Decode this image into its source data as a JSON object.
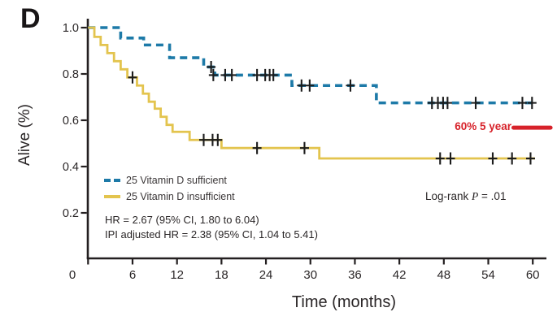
{
  "panel_label": "D",
  "stats": {
    "line1": "HR = 2.67 (95% CI, 1.80 to 6.04)",
    "line2": "IPI adjusted HR = 2.38 (95% CI, 1.04 to 5.41)"
  },
  "log_rank": {
    "prefix": "Log-rank ",
    "p_symbol": "P",
    "value": " = .01"
  },
  "annotation": {
    "label": "60% 5 year",
    "color": "#d7222a",
    "line_level": 0.568,
    "line_t_start": 57.4,
    "line_t_end": 62.4
  },
  "chart_data": {
    "type": "line",
    "subtype": "kaplan-meier-step",
    "title": "",
    "xlabel": "Time (months)",
    "ylabel": "Alive (%)",
    "xlim": [
      0,
      62
    ],
    "ylim": [
      0,
      1.0
    ],
    "xticks": [
      0,
      6,
      12,
      18,
      24,
      30,
      36,
      42,
      48,
      54,
      60
    ],
    "yticks": [
      1.0,
      0.8,
      0.6,
      0.4,
      0.2
    ],
    "ytick_labels": [
      "1.0",
      "0.8",
      "0.6",
      "0.4",
      "0.2"
    ],
    "grid": false,
    "legend_position": "inside-lower-left",
    "axis_color": "#231f20",
    "censor_color": "#1c1c1c",
    "series": [
      {
        "name": "25 Vitamin D sufficient",
        "color": "#1d7aa8",
        "line_style": "dashed",
        "steps": [
          [
            0,
            1.0
          ],
          [
            4.4,
            0.955
          ],
          [
            7.5,
            0.925
          ],
          [
            11.0,
            0.87
          ],
          [
            15.6,
            0.83
          ],
          [
            17.1,
            0.795
          ],
          [
            27.5,
            0.75
          ],
          [
            38.9,
            0.675
          ],
          [
            60.6,
            0.675
          ]
        ],
        "censor_marks": [
          [
            16.6,
            0.83
          ],
          [
            16.9,
            0.795
          ],
          [
            18.5,
            0.795
          ],
          [
            19.4,
            0.795
          ],
          [
            22.8,
            0.795
          ],
          [
            23.9,
            0.795
          ],
          [
            24.5,
            0.795
          ],
          [
            25.0,
            0.795
          ],
          [
            28.8,
            0.75
          ],
          [
            29.9,
            0.75
          ],
          [
            35.4,
            0.75
          ],
          [
            46.4,
            0.675
          ],
          [
            47.2,
            0.675
          ],
          [
            47.9,
            0.675
          ],
          [
            48.5,
            0.675
          ],
          [
            52.3,
            0.675
          ],
          [
            58.6,
            0.675
          ],
          [
            59.9,
            0.675
          ]
        ]
      },
      {
        "name": "25 Vitamin D insufficient",
        "color": "#e3c44e",
        "line_style": "solid",
        "steps": [
          [
            0,
            1.0
          ],
          [
            0.85,
            0.96
          ],
          [
            1.7,
            0.925
          ],
          [
            2.6,
            0.89
          ],
          [
            3.5,
            0.855
          ],
          [
            4.4,
            0.82
          ],
          [
            5.3,
            0.785
          ],
          [
            6.6,
            0.75
          ],
          [
            7.4,
            0.715
          ],
          [
            8.2,
            0.68
          ],
          [
            9.0,
            0.65
          ],
          [
            9.8,
            0.615
          ],
          [
            10.6,
            0.58
          ],
          [
            11.4,
            0.55
          ],
          [
            13.7,
            0.515
          ],
          [
            18.0,
            0.48
          ],
          [
            31.2,
            0.435
          ],
          [
            60.3,
            0.435
          ]
        ],
        "censor_marks": [
          [
            6.0,
            0.785
          ],
          [
            15.6,
            0.515
          ],
          [
            16.8,
            0.515
          ],
          [
            17.5,
            0.515
          ],
          [
            22.8,
            0.48
          ],
          [
            29.2,
            0.48
          ],
          [
            47.5,
            0.435
          ],
          [
            48.9,
            0.435
          ],
          [
            54.6,
            0.435
          ],
          [
            57.2,
            0.435
          ],
          [
            59.7,
            0.435
          ]
        ]
      }
    ]
  }
}
